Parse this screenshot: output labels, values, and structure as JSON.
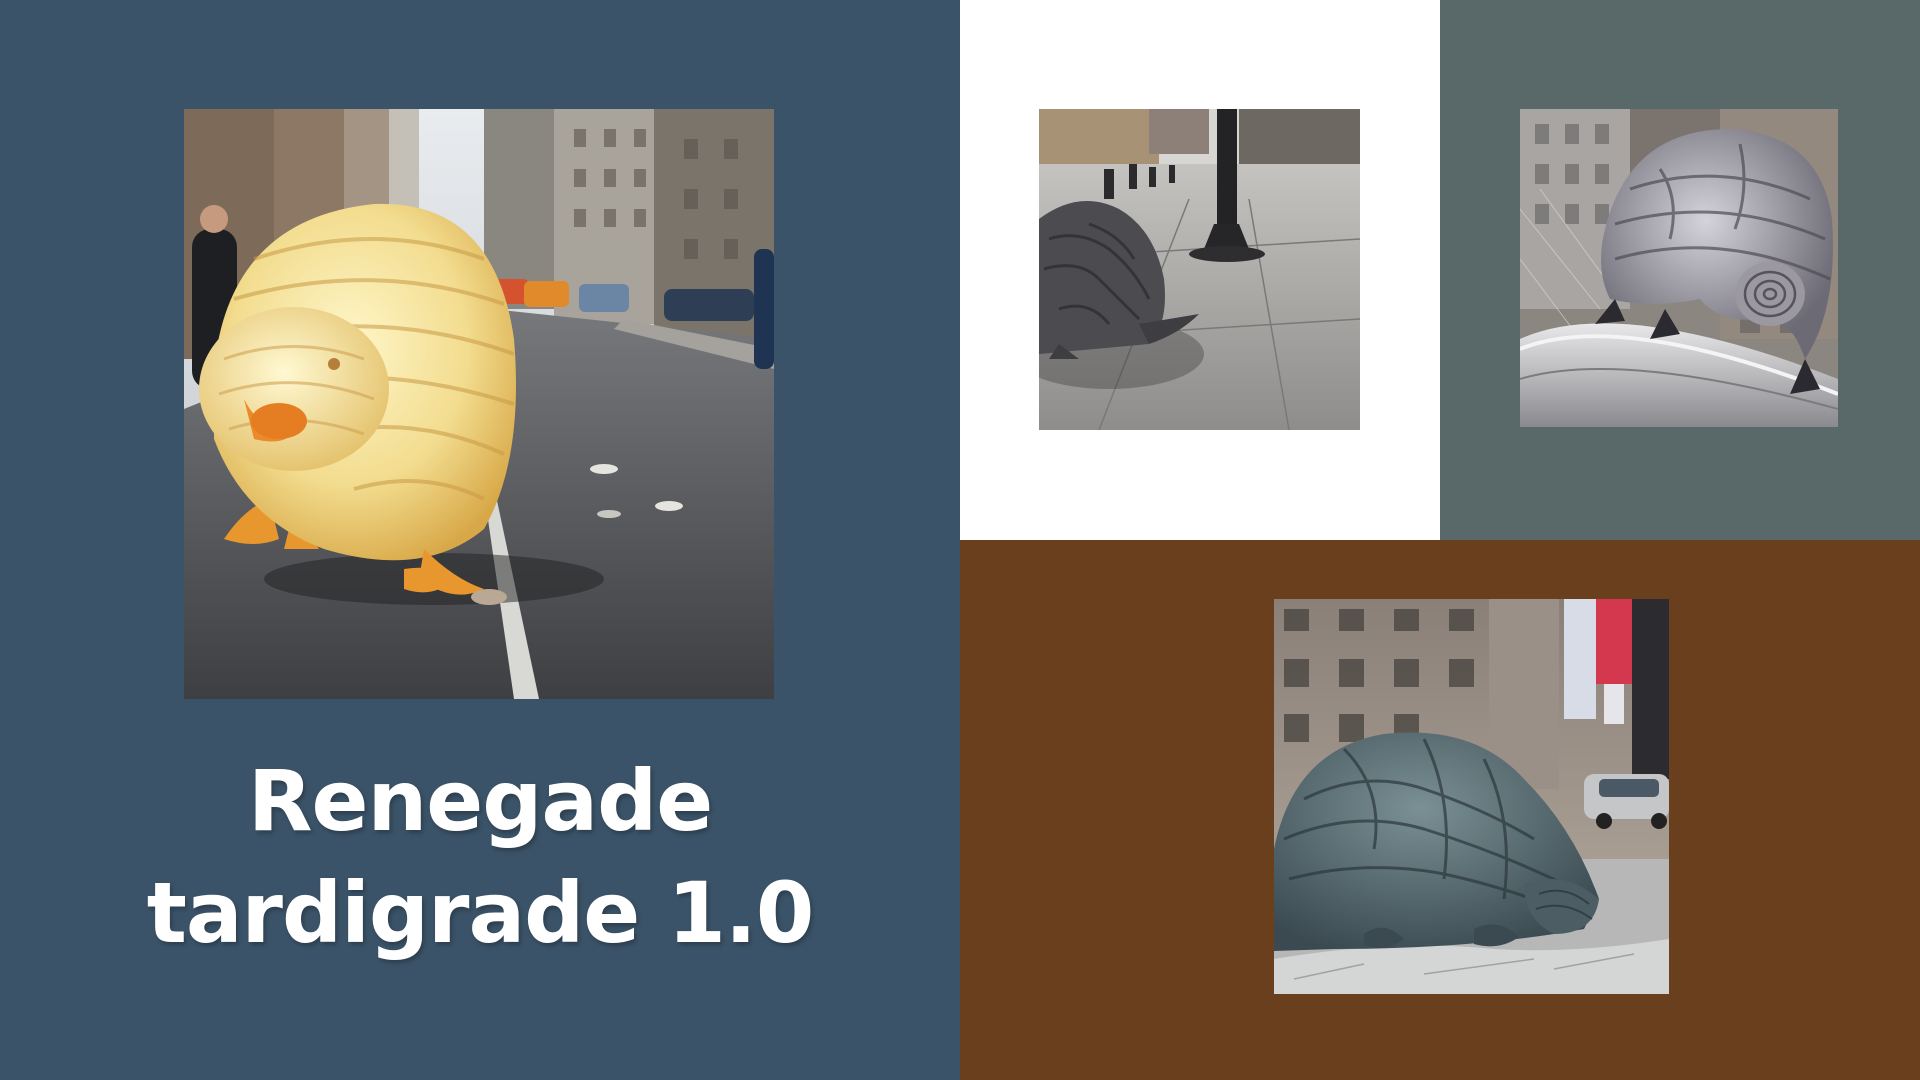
{
  "slide": {
    "title_line1": "Renegade",
    "title_line2": "tardigrade 1.0"
  },
  "colors": {
    "main_panel": "#3b5368",
    "top_white_panel": "#ffffff",
    "top_gray_panel": "#59696a",
    "bottom_brown_panel": "#6a3f1d"
  },
  "images": [
    {
      "subject": "yellow translucent tardigrade on city street"
    },
    {
      "subject": "dark gray tardigrade beside lamp post on sidewalk"
    },
    {
      "subject": "gray silver tardigrade on metal railing"
    },
    {
      "subject": "large gray-teal tardigrade lying on street"
    }
  ]
}
